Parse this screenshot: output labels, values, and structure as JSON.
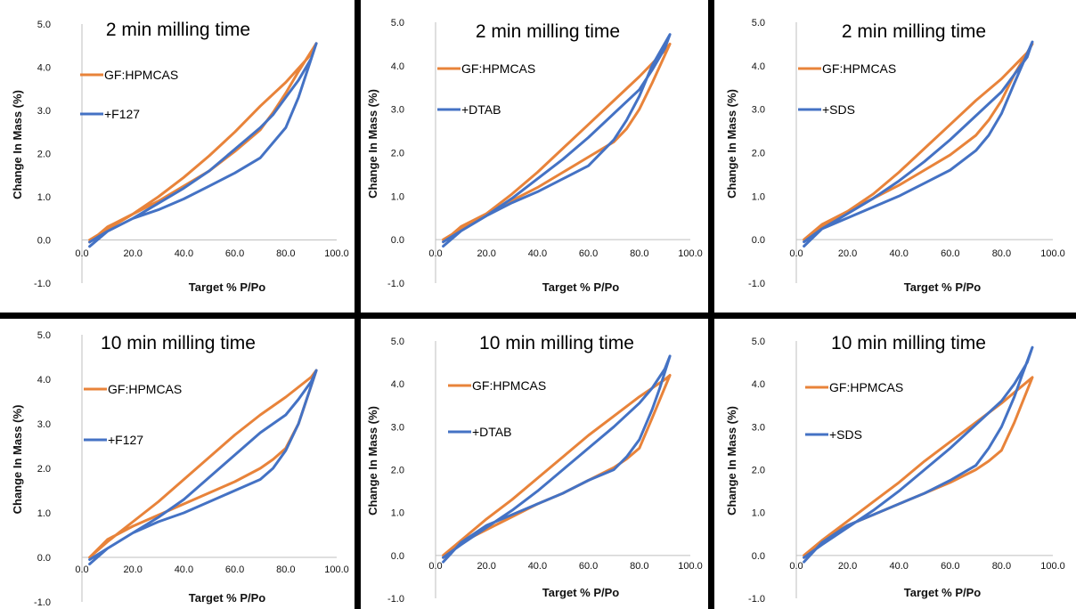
{
  "colors": {
    "orange": "#E8833A",
    "blue": "#4472C4",
    "axis": "#bfbfbf",
    "divider": "#000000"
  },
  "axis_labels": {
    "xlabel": "Target % P/Po",
    "ylabel": "Change In Mass (%)"
  },
  "legend": {
    "base": "GF:HPMCAS"
  },
  "chart_data": [
    {
      "type": "line",
      "title": "2 min milling time",
      "xlabel": "Target % P/Po",
      "ylabel": "Change In Mass (%)",
      "xlim": [
        0,
        100
      ],
      "ylim": [
        -1,
        5
      ],
      "xticks": [
        "0.0",
        "20.0",
        "40.0",
        "60.0",
        "80.0",
        "100.0"
      ],
      "yticks": [
        "5.0",
        "4.0",
        "3.0",
        "2.0",
        "1.0",
        "0.0",
        "-1.0"
      ],
      "series": [
        {
          "name": "GF:HPMCAS",
          "color": "#E8833A",
          "x": [
            3,
            10,
            20,
            30,
            40,
            50,
            60,
            70,
            80,
            90,
            92,
            85,
            80,
            75,
            70,
            60,
            50,
            40,
            30,
            20,
            10,
            3
          ],
          "y": [
            0,
            0.25,
            0.6,
            1.0,
            1.45,
            1.95,
            2.5,
            3.1,
            3.65,
            4.3,
            4.55,
            3.9,
            3.4,
            2.95,
            2.55,
            2.05,
            1.6,
            1.25,
            0.9,
            0.6,
            0.3,
            -0.05
          ]
        },
        {
          "name": "+F127",
          "color": "#4472C4",
          "x": [
            3,
            10,
            20,
            30,
            40,
            50,
            60,
            70,
            75,
            80,
            85,
            90,
            92,
            85,
            80,
            70,
            60,
            50,
            40,
            30,
            20,
            10,
            3
          ],
          "y": [
            -0.05,
            0.2,
            0.5,
            0.85,
            1.2,
            1.6,
            2.1,
            2.6,
            2.9,
            3.3,
            3.7,
            4.2,
            4.55,
            3.3,
            2.6,
            1.9,
            1.55,
            1.25,
            0.95,
            0.7,
            0.5,
            0.2,
            -0.15
          ]
        }
      ]
    },
    {
      "type": "line",
      "title": "2 min milling time",
      "xlabel": "Target % P/Po",
      "ylabel": "Change In Mass (%)",
      "xlim": [
        0,
        100
      ],
      "ylim": [
        -1,
        5
      ],
      "xticks": [
        "0.0",
        "20.0",
        "40.0",
        "60.0",
        "80.0",
        "100.0"
      ],
      "yticks": [
        "5.0",
        "4.0",
        "3.0",
        "2.0",
        "1.0",
        "0.0",
        "-1.0"
      ],
      "series": [
        {
          "name": "GF:HPMCAS",
          "color": "#E8833A",
          "x": [
            3,
            10,
            20,
            30,
            40,
            50,
            60,
            70,
            80,
            90,
            92,
            85,
            80,
            75,
            70,
            60,
            50,
            40,
            30,
            20,
            10,
            3
          ],
          "y": [
            0,
            0.25,
            0.6,
            1.05,
            1.55,
            2.1,
            2.65,
            3.2,
            3.75,
            4.35,
            4.5,
            3.6,
            3.0,
            2.55,
            2.25,
            1.9,
            1.55,
            1.2,
            0.9,
            0.6,
            0.3,
            -0.05
          ]
        },
        {
          "name": "+DTAB",
          "color": "#4472C4",
          "x": [
            3,
            10,
            20,
            30,
            40,
            50,
            60,
            70,
            80,
            85,
            90,
            92,
            85,
            80,
            75,
            70,
            60,
            50,
            40,
            30,
            20,
            10,
            3
          ],
          "y": [
            -0.05,
            0.2,
            0.55,
            0.95,
            1.4,
            1.85,
            2.35,
            2.9,
            3.45,
            3.9,
            4.4,
            4.72,
            4.0,
            3.3,
            2.75,
            2.3,
            1.7,
            1.4,
            1.1,
            0.85,
            0.55,
            0.2,
            -0.15
          ]
        }
      ]
    },
    {
      "type": "line",
      "title": "2 min milling time",
      "xlabel": "Target % P/Po",
      "ylabel": "Change In Mass (%)",
      "xlim": [
        0,
        100
      ],
      "ylim": [
        -1,
        5
      ],
      "xticks": [
        "0.0",
        "20.0",
        "40.0",
        "60.0",
        "80.0",
        "100.0"
      ],
      "yticks": [
        "5.0",
        "4.0",
        "3.0",
        "2.0",
        "1.0",
        "0.0",
        "-1.0"
      ],
      "series": [
        {
          "name": "GF:HPMCAS",
          "color": "#E8833A",
          "x": [
            3,
            10,
            20,
            30,
            40,
            50,
            60,
            70,
            80,
            90,
            92,
            85,
            80,
            75,
            70,
            60,
            50,
            40,
            30,
            20,
            10,
            3
          ],
          "y": [
            0,
            0.3,
            0.65,
            1.05,
            1.55,
            2.1,
            2.65,
            3.2,
            3.7,
            4.3,
            4.5,
            3.8,
            3.2,
            2.75,
            2.4,
            1.95,
            1.6,
            1.25,
            0.95,
            0.65,
            0.35,
            0
          ]
        },
        {
          "name": "+SDS",
          "color": "#4472C4",
          "x": [
            3,
            10,
            20,
            30,
            40,
            50,
            60,
            70,
            80,
            90,
            92,
            85,
            80,
            75,
            70,
            60,
            50,
            40,
            30,
            20,
            10,
            3
          ],
          "y": [
            -0.05,
            0.25,
            0.6,
            0.95,
            1.35,
            1.8,
            2.3,
            2.85,
            3.4,
            4.2,
            4.55,
            3.6,
            2.9,
            2.4,
            2.05,
            1.6,
            1.3,
            1.0,
            0.75,
            0.5,
            0.25,
            -0.15
          ]
        }
      ]
    },
    {
      "type": "line",
      "title": "10 min milling time",
      "xlabel": "Target % P/Po",
      "ylabel": "Change In Mass (%)",
      "xlim": [
        0,
        100
      ],
      "ylim": [
        -1,
        5
      ],
      "xticks": [
        "0.0",
        "20.0",
        "40.0",
        "60.0",
        "80.0",
        "100.0"
      ],
      "yticks": [
        "5.0",
        "4.0",
        "3.0",
        "2.0",
        "1.0",
        "0.0",
        "-1.0"
      ],
      "series": [
        {
          "name": "GF:HPMCAS",
          "color": "#E8833A",
          "x": [
            3,
            10,
            20,
            30,
            40,
            50,
            60,
            70,
            80,
            90,
            92,
            85,
            80,
            75,
            70,
            60,
            50,
            40,
            30,
            20,
            10,
            3
          ],
          "y": [
            0,
            0.35,
            0.8,
            1.25,
            1.75,
            2.25,
            2.75,
            3.2,
            3.6,
            4.05,
            4.2,
            3.0,
            2.45,
            2.2,
            2.0,
            1.7,
            1.45,
            1.2,
            0.95,
            0.7,
            0.4,
            0
          ]
        },
        {
          "name": "+F127",
          "color": "#4472C4",
          "x": [
            3,
            10,
            20,
            30,
            40,
            50,
            60,
            70,
            80,
            85,
            90,
            92,
            85,
            80,
            75,
            70,
            60,
            50,
            40,
            30,
            20,
            10,
            3
          ],
          "y": [
            -0.05,
            0.2,
            0.55,
            0.9,
            1.3,
            1.8,
            2.3,
            2.8,
            3.2,
            3.55,
            3.95,
            4.2,
            3.0,
            2.4,
            2.0,
            1.75,
            1.5,
            1.25,
            1.0,
            0.8,
            0.55,
            0.2,
            -0.15
          ]
        }
      ]
    },
    {
      "type": "line",
      "title": "10 min milling time",
      "xlabel": "Target % P/Po",
      "ylabel": "Change In Mass (%)",
      "xlim": [
        0,
        100
      ],
      "ylim": [
        -1,
        5
      ],
      "xticks": [
        "0.0",
        "20.0",
        "40.0",
        "60.0",
        "80.0",
        "100.0"
      ],
      "yticks": [
        "5.0",
        "4.0",
        "3.0",
        "2.0",
        "1.0",
        "0.0",
        "-1.0"
      ],
      "series": [
        {
          "name": "GF:HPMCAS",
          "color": "#E8833A",
          "x": [
            3,
            10,
            20,
            30,
            40,
            50,
            60,
            70,
            80,
            90,
            92,
            85,
            80,
            75,
            70,
            60,
            50,
            40,
            30,
            20,
            10,
            3
          ],
          "y": [
            0,
            0.35,
            0.85,
            1.3,
            1.8,
            2.3,
            2.8,
            3.25,
            3.7,
            4.1,
            4.2,
            3.2,
            2.5,
            2.25,
            2.05,
            1.75,
            1.45,
            1.2,
            0.9,
            0.6,
            0.3,
            -0.05
          ]
        },
        {
          "name": "+DTAB",
          "color": "#4472C4",
          "x": [
            3,
            10,
            20,
            30,
            40,
            50,
            60,
            70,
            80,
            85,
            90,
            92,
            88,
            85,
            80,
            75,
            70,
            60,
            50,
            40,
            30,
            20,
            10,
            3
          ],
          "y": [
            -0.05,
            0.25,
            0.65,
            1.05,
            1.5,
            2.0,
            2.5,
            3.0,
            3.55,
            3.9,
            4.35,
            4.65,
            3.9,
            3.4,
            2.7,
            2.3,
            2.0,
            1.75,
            1.45,
            1.2,
            0.95,
            0.7,
            0.3,
            -0.15
          ]
        }
      ]
    },
    {
      "type": "line",
      "title": "10 min milling time",
      "xlabel": "Target % P/Po",
      "ylabel": "Change In Mass (%)",
      "xlim": [
        0,
        100
      ],
      "ylim": [
        -1,
        5
      ],
      "xticks": [
        "0.0",
        "20.0",
        "40.0",
        "60.0",
        "80.0",
        "100.0"
      ],
      "yticks": [
        "5.0",
        "4.0",
        "3.0",
        "2.0",
        "1.0",
        "0.0",
        "-1.0"
      ],
      "series": [
        {
          "name": "GF:HPMCAS",
          "color": "#E8833A",
          "x": [
            3,
            10,
            20,
            30,
            40,
            50,
            60,
            70,
            80,
            90,
            92,
            85,
            80,
            75,
            70,
            60,
            50,
            40,
            30,
            20,
            10,
            3
          ],
          "y": [
            0,
            0.35,
            0.8,
            1.25,
            1.7,
            2.2,
            2.65,
            3.1,
            3.55,
            4.05,
            4.15,
            3.1,
            2.45,
            2.2,
            2.0,
            1.7,
            1.45,
            1.2,
            0.95,
            0.7,
            0.35,
            -0.05
          ]
        },
        {
          "name": "+SDS",
          "color": "#4472C4",
          "x": [
            3,
            10,
            20,
            30,
            40,
            50,
            60,
            70,
            80,
            85,
            90,
            92,
            88,
            85,
            80,
            75,
            70,
            60,
            50,
            40,
            30,
            20,
            10,
            3
          ],
          "y": [
            -0.05,
            0.25,
            0.65,
            1.05,
            1.5,
            2.0,
            2.5,
            3.05,
            3.6,
            4.0,
            4.5,
            4.85,
            4.2,
            3.7,
            3.0,
            2.5,
            2.1,
            1.75,
            1.45,
            1.2,
            0.95,
            0.7,
            0.3,
            -0.15
          ]
        }
      ]
    }
  ]
}
